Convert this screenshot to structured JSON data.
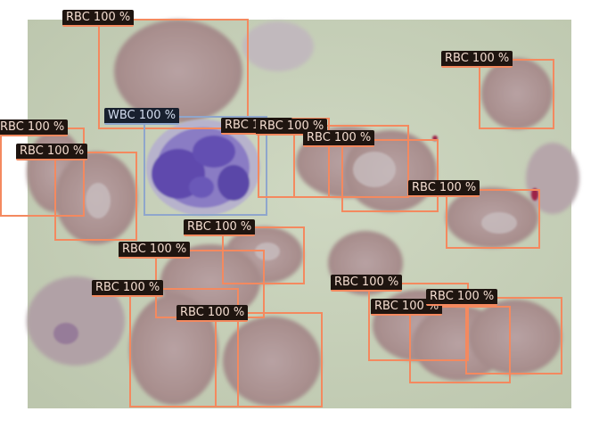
{
  "image": {
    "description_icon": "blood-smear-micrograph",
    "colors": {
      "background": "#c5d0b8",
      "rbc_fill": "#ad9492",
      "wbc_nucleus": "#6a55b6",
      "rbc_box": "#f4895f",
      "wbc_box": "#8fa6cc"
    }
  },
  "detections": [
    {
      "label": "RBC 100 %",
      "class": "rbc"
    },
    {
      "label": "RBC 100 %",
      "class": "rbc"
    },
    {
      "label": "RBC 100 %",
      "class": "rbc"
    },
    {
      "label": "RBC 100 %",
      "class": "rbc"
    },
    {
      "label": "WBC 100 %",
      "class": "wbc"
    },
    {
      "label": "RBC 100 %",
      "class": "rbc"
    },
    {
      "label": "RBC 100 %",
      "class": "rbc"
    },
    {
      "label": "RBC 100 %",
      "class": "rbc"
    },
    {
      "label": "RBC 100 %",
      "class": "rbc"
    },
    {
      "label": "RBC 100 %",
      "class": "rbc"
    },
    {
      "label": "RBC 100 %",
      "class": "rbc"
    },
    {
      "label": "RBC 100 %",
      "class": "rbc"
    },
    {
      "label": "RBC 100 %",
      "class": "rbc"
    },
    {
      "label": "RBC 100 %",
      "class": "rbc"
    },
    {
      "label": "RBC 100 %",
      "class": "rbc"
    },
    {
      "label": "RBC 100 %",
      "class": "rbc"
    },
    {
      "label": "RBC 100 %",
      "class": "rbc"
    }
  ]
}
